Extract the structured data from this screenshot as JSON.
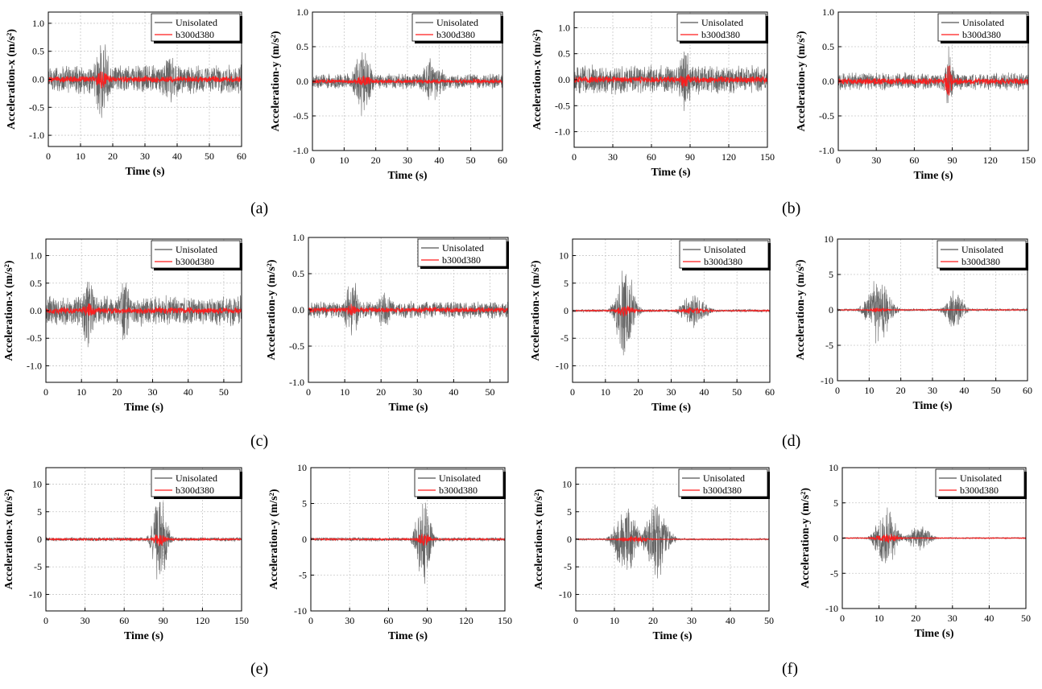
{
  "figure": {
    "panel_labels": {
      "a": "(a)",
      "b": "(b)",
      "c": "(c)",
      "d": "(d)",
      "e": "(e)",
      "f": "(f)"
    }
  },
  "colors": {
    "unisolated": "#555555",
    "isolated": "#ff1a1a",
    "grid": "#c8c8c8"
  },
  "chart_data": [
    {
      "id": "a-x",
      "type": "line",
      "xlabel": "Time (s)",
      "ylabel": "Acceleration-x (m/s²)",
      "xlim": [
        0,
        60
      ],
      "ylim": [
        -1.2,
        1.2
      ],
      "xticks": [
        0,
        10,
        20,
        30,
        40,
        50,
        60
      ],
      "yticks": [
        -1.0,
        -0.5,
        0.0,
        0.5,
        1.0
      ],
      "ytick_decimals": 1,
      "legend": [
        "Unisolated",
        "b300d380"
      ],
      "series": [
        {
          "name": "Unisolated",
          "base": 0.28,
          "peaks": [
            {
              "t": 16.5,
              "a": 0.86,
              "w": 2.5
            },
            {
              "t": 38,
              "a": 0.5,
              "w": 4
            }
          ]
        },
        {
          "name": "b300d380",
          "base": 0.06,
          "peaks": [
            {
              "t": 16.5,
              "a": 0.2,
              "w": 2
            }
          ]
        }
      ]
    },
    {
      "id": "a-y",
      "type": "line",
      "xlabel": "Time (s)",
      "ylabel": "Acceleration-y (m/s²)",
      "xlim": [
        0,
        60
      ],
      "ylim": [
        -1.0,
        1.0
      ],
      "xticks": [
        0,
        10,
        20,
        30,
        40,
        50,
        60
      ],
      "yticks": [
        -1.0,
        -0.5,
        0.0,
        0.5,
        1.0
      ],
      "ytick_decimals": 1,
      "legend": [
        "Unisolated",
        "b300d380"
      ],
      "series": [
        {
          "name": "Unisolated",
          "base": 0.12,
          "peaks": [
            {
              "t": 16,
              "a": 0.56,
              "w": 3
            },
            {
              "t": 38,
              "a": 0.37,
              "w": 4
            }
          ]
        },
        {
          "name": "b300d380",
          "base": 0.03,
          "peaks": [
            {
              "t": 16,
              "a": 0.1,
              "w": 3
            }
          ]
        }
      ]
    },
    {
      "id": "b-x",
      "type": "line",
      "xlabel": "Time (s)",
      "ylabel": "Acceleration-x (m/s²)",
      "xlim": [
        0,
        150
      ],
      "ylim": [
        -1.3,
        1.3
      ],
      "xticks": [
        0,
        30,
        60,
        90,
        120,
        150
      ],
      "yticks": [
        -1.0,
        -0.5,
        0.0,
        0.5,
        1.0
      ],
      "ytick_decimals": 1,
      "legend": [
        "Unisolated",
        "b300d380"
      ],
      "series": [
        {
          "name": "Unisolated",
          "base": 0.3,
          "peaks": [
            {
              "t": 86,
              "a": 0.78,
              "w": 5
            }
          ]
        },
        {
          "name": "b300d380",
          "base": 0.07,
          "peaks": [
            {
              "t": 86,
              "a": 0.2,
              "w": 4
            }
          ]
        }
      ]
    },
    {
      "id": "b-y",
      "type": "line",
      "xlabel": "Time (s)",
      "ylabel": "Acceleration-y (m/s²)",
      "xlim": [
        0,
        150
      ],
      "ylim": [
        -1.0,
        1.0
      ],
      "xticks": [
        0,
        30,
        60,
        90,
        120,
        150
      ],
      "yticks": [
        -1.0,
        -0.5,
        0.0,
        0.5,
        1.0
      ],
      "ytick_decimals": 1,
      "legend": [
        "Unisolated",
        "b300d380"
      ],
      "series": [
        {
          "name": "Unisolated",
          "base": 0.14,
          "peaks": [
            {
              "t": 87,
              "a": 0.55,
              "w": 4
            }
          ]
        },
        {
          "name": "b300d380",
          "base": 0.05,
          "peaks": [
            {
              "t": 87,
              "a": 0.32,
              "w": 3
            }
          ]
        }
      ]
    },
    {
      "id": "c-x",
      "type": "line",
      "xlabel": "Time (s)",
      "ylabel": "Acceleration-x (m/s²)",
      "xlim": [
        0,
        55
      ],
      "ylim": [
        -1.3,
        1.3
      ],
      "xticks": [
        0,
        10,
        20,
        30,
        40,
        50
      ],
      "yticks": [
        -1.0,
        -0.5,
        0.0,
        0.5,
        1.0
      ],
      "ytick_decimals": 1,
      "legend": [
        "Unisolated",
        "b300d380"
      ],
      "series": [
        {
          "name": "Unisolated",
          "base": 0.3,
          "peaks": [
            {
              "t": 12,
              "a": 0.8,
              "w": 2
            },
            {
              "t": 22,
              "a": 0.7,
              "w": 2
            }
          ]
        },
        {
          "name": "b300d380",
          "base": 0.06,
          "peaks": [
            {
              "t": 12,
              "a": 0.15,
              "w": 2
            }
          ]
        }
      ]
    },
    {
      "id": "c-y",
      "type": "line",
      "xlabel": "Time (s)",
      "ylabel": "Acceleration-y (m/s²)",
      "xlim": [
        0,
        55
      ],
      "ylim": [
        -1.0,
        1.0
      ],
      "xticks": [
        0,
        10,
        20,
        30,
        40,
        50
      ],
      "yticks": [
        -1.0,
        -0.5,
        0.0,
        0.5,
        1.0
      ],
      "ytick_decimals": 1,
      "legend": [
        "Unisolated",
        "b300d380"
      ],
      "series": [
        {
          "name": "Unisolated",
          "base": 0.13,
          "peaks": [
            {
              "t": 12,
              "a": 0.5,
              "w": 2
            },
            {
              "t": 21,
              "a": 0.33,
              "w": 2
            }
          ]
        },
        {
          "name": "b300d380",
          "base": 0.04,
          "peaks": [
            {
              "t": 12,
              "a": 0.1,
              "w": 2
            }
          ]
        }
      ]
    },
    {
      "id": "d-x",
      "type": "line",
      "xlabel": "Time (s)",
      "ylabel": "Acceleration-x (m/s²)",
      "xlim": [
        0,
        60
      ],
      "ylim": [
        -13,
        13
      ],
      "xticks": [
        0,
        10,
        20,
        30,
        40,
        50,
        60
      ],
      "yticks": [
        -10,
        -5,
        0,
        5,
        10
      ],
      "ytick_decimals": 0,
      "legend": [
        "Unisolated",
        "b300d380"
      ],
      "series": [
        {
          "name": "Unisolated",
          "base": 0.3,
          "peaks": [
            {
              "t": 16,
              "a": 9.5,
              "w": 3
            },
            {
              "t": 37,
              "a": 3.5,
              "w": 4
            }
          ]
        },
        {
          "name": "b300d380",
          "base": 0.1,
          "peaks": [
            {
              "t": 16,
              "a": 1.2,
              "w": 3
            },
            {
              "t": 37,
              "a": 0.8,
              "w": 4
            }
          ]
        }
      ]
    },
    {
      "id": "d-y",
      "type": "line",
      "xlabel": "Time (s)",
      "ylabel": "Acceleration-y (m/s²)",
      "xlim": [
        0,
        60
      ],
      "ylim": [
        -10,
        10
      ],
      "xticks": [
        0,
        10,
        20,
        30,
        40,
        50,
        60
      ],
      "yticks": [
        -10,
        -5,
        0,
        5,
        10
      ],
      "ytick_decimals": 0,
      "legend": [
        "Unisolated",
        "b300d380"
      ],
      "series": [
        {
          "name": "Unisolated",
          "base": 0.2,
          "peaks": [
            {
              "t": 13,
              "a": 5.0,
              "w": 4
            },
            {
              "t": 37,
              "a": 3.2,
              "w": 3
            }
          ]
        },
        {
          "name": "b300d380",
          "base": 0.05,
          "peaks": [
            {
              "t": 13,
              "a": 0.4,
              "w": 3
            }
          ]
        }
      ]
    },
    {
      "id": "e-x",
      "type": "line",
      "xlabel": "Time (s)",
      "ylabel": "Acceleration-x (m/s²)",
      "xlim": [
        0,
        150
      ],
      "ylim": [
        -13,
        13
      ],
      "xticks": [
        0,
        30,
        60,
        90,
        120,
        150
      ],
      "yticks": [
        -10,
        -5,
        0,
        5,
        10
      ],
      "ytick_decimals": 0,
      "legend": [
        "Unisolated",
        "b300d380"
      ],
      "series": [
        {
          "name": "Unisolated",
          "base": 0.4,
          "peaks": [
            {
              "t": 87,
              "a": 10,
              "w": 6
            }
          ]
        },
        {
          "name": "b300d380",
          "base": 0.15,
          "peaks": [
            {
              "t": 87,
              "a": 1.5,
              "w": 5
            }
          ]
        }
      ]
    },
    {
      "id": "e-y",
      "type": "line",
      "xlabel": "Time (s)",
      "ylabel": "Acceleration-y (m/s²)",
      "xlim": [
        0,
        150
      ],
      "ylim": [
        -10,
        10
      ],
      "xticks": [
        0,
        30,
        60,
        90,
        120,
        150
      ],
      "yticks": [
        -10,
        -5,
        0,
        5,
        10
      ],
      "ytick_decimals": 0,
      "legend": [
        "Unisolated",
        "b300d380"
      ],
      "series": [
        {
          "name": "Unisolated",
          "base": 0.3,
          "peaks": [
            {
              "t": 87,
              "a": 7,
              "w": 6
            }
          ]
        },
        {
          "name": "b300d380",
          "base": 0.1,
          "peaks": [
            {
              "t": 87,
              "a": 1.2,
              "w": 5
            }
          ]
        }
      ]
    },
    {
      "id": "f-x",
      "type": "line",
      "xlabel": "Time (s)",
      "ylabel": "Acceleration-x (m/s²)",
      "xlim": [
        0,
        50
      ],
      "ylim": [
        -13,
        13
      ],
      "xticks": [
        0,
        10,
        20,
        30,
        40,
        50
      ],
      "yticks": [
        -10,
        -5,
        0,
        5,
        10
      ],
      "ytick_decimals": 0,
      "legend": [
        "Unisolated",
        "b300d380"
      ],
      "series": [
        {
          "name": "Unisolated",
          "base": 0.2,
          "peaks": [
            {
              "t": 13,
              "a": 7,
              "w": 3
            },
            {
              "t": 21,
              "a": 8,
              "w": 3
            }
          ]
        },
        {
          "name": "b300d380",
          "base": 0.05,
          "peaks": [
            {
              "t": 15,
              "a": 0.6,
              "w": 4
            }
          ]
        }
      ]
    },
    {
      "id": "f-y",
      "type": "line",
      "xlabel": "Time (s)",
      "ylabel": "Acceleration-y (m/s²)",
      "xlim": [
        0,
        50
      ],
      "ylim": [
        -10,
        10
      ],
      "xticks": [
        0,
        10,
        20,
        30,
        40,
        50
      ],
      "yticks": [
        -10,
        -5,
        0,
        5,
        10
      ],
      "ytick_decimals": 0,
      "legend": [
        "Unisolated",
        "b300d380"
      ],
      "series": [
        {
          "name": "Unisolated",
          "base": 0.1,
          "peaks": [
            {
              "t": 12,
              "a": 4.8,
              "w": 3
            },
            {
              "t": 21,
              "a": 2.2,
              "w": 3
            }
          ]
        },
        {
          "name": "b300d380",
          "base": 0.05,
          "peaks": [
            {
              "t": 12,
              "a": 0.8,
              "w": 3
            }
          ]
        }
      ]
    }
  ]
}
